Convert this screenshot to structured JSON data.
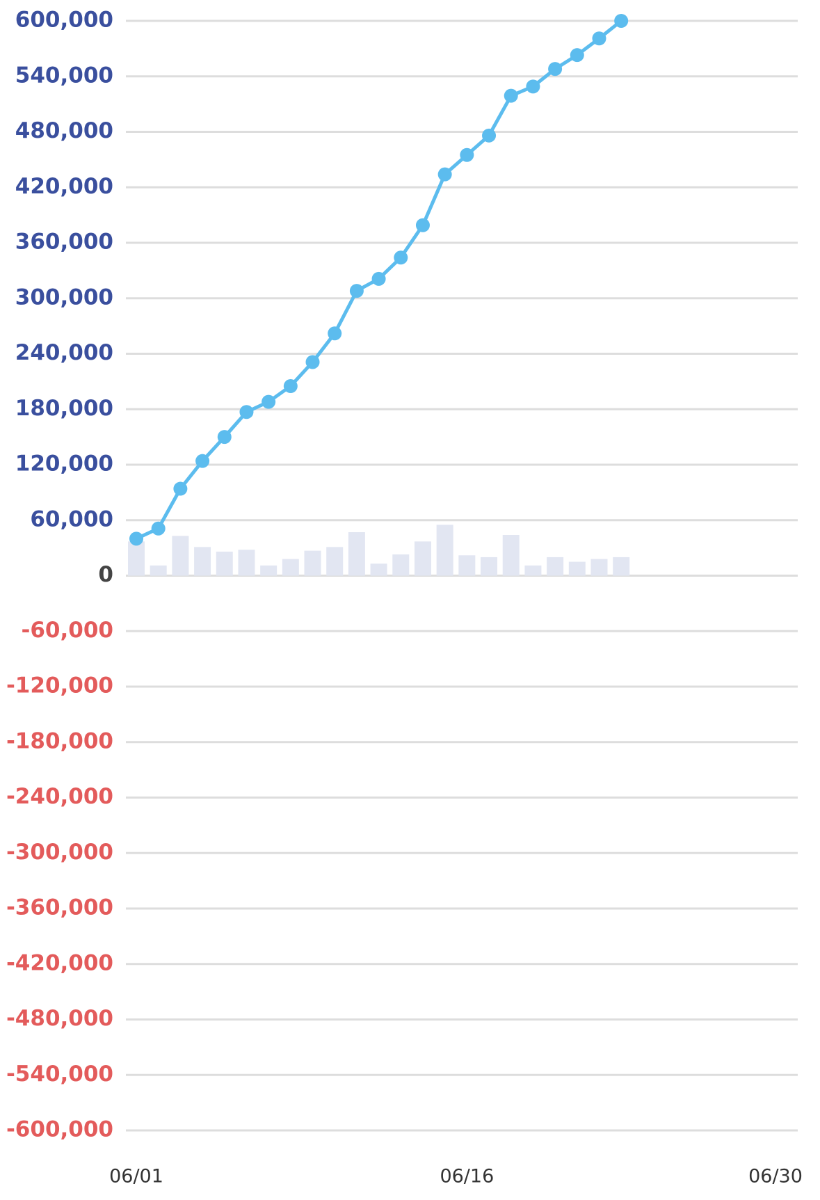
{
  "chart_data": {
    "type": "bar-line",
    "categories": [
      "06/01",
      null,
      null,
      null,
      null,
      null,
      null,
      null,
      null,
      null,
      null,
      null,
      null,
      null,
      null,
      "06/16",
      null,
      null,
      null,
      null,
      null,
      null,
      null,
      null,
      null,
      null,
      null,
      null,
      null,
      "06/30"
    ],
    "series": [
      {
        "type": "bar",
        "color": "#e2e6f2",
        "values": [
          37000,
          11000,
          43000,
          31000,
          26000,
          28000,
          11000,
          18000,
          27000,
          31000,
          47000,
          13000,
          23000,
          37000,
          55000,
          22000,
          20000,
          44000,
          11000,
          20000,
          15000,
          18000,
          20000,
          null,
          null,
          null,
          null,
          null,
          null,
          null
        ]
      },
      {
        "type": "line",
        "color": "#5cbcee",
        "values": [
          40000,
          51000,
          94000,
          124000,
          150000,
          177000,
          188000,
          205000,
          231000,
          262000,
          308000,
          321000,
          344000,
          379000,
          434000,
          455000,
          476000,
          519000,
          529000,
          548000,
          563000,
          581000,
          600000,
          null,
          null,
          null,
          null,
          null,
          null,
          null
        ]
      }
    ],
    "ylim": [
      -600000,
      600000
    ],
    "yticks": [
      {
        "value": 600000,
        "label": "600,000"
      },
      {
        "value": 540000,
        "label": "540,000"
      },
      {
        "value": 480000,
        "label": "480,000"
      },
      {
        "value": 420000,
        "label": "420,000"
      },
      {
        "value": 360000,
        "label": "360,000"
      },
      {
        "value": 300000,
        "label": "300,000"
      },
      {
        "value": 240000,
        "label": "240,000"
      },
      {
        "value": 180000,
        "label": "180,000"
      },
      {
        "value": 120000,
        "label": "120,000"
      },
      {
        "value": 60000,
        "label": "60,000"
      },
      0,
      {
        "value": -60000,
        "label": "-60,000"
      },
      {
        "value": -120000,
        "label": "-120,000"
      },
      {
        "value": -180000,
        "label": "-180,000"
      },
      {
        "value": -240000,
        "label": "-240,000"
      },
      {
        "value": -300000,
        "label": "-300,000"
      },
      {
        "value": -360000,
        "label": "-360,000"
      },
      {
        "value": -420000,
        "label": "-420,000"
      },
      {
        "value": -480000,
        "label": "-480,000"
      },
      {
        "value": -540000,
        "label": "-540,000"
      },
      {
        "value": -600000,
        "label": "-600,000"
      }
    ],
    "grid": true,
    "ytick_colors": {
      "positive": "#3a4f9e",
      "zero": "#444444",
      "negative": "#e35b5b"
    }
  }
}
